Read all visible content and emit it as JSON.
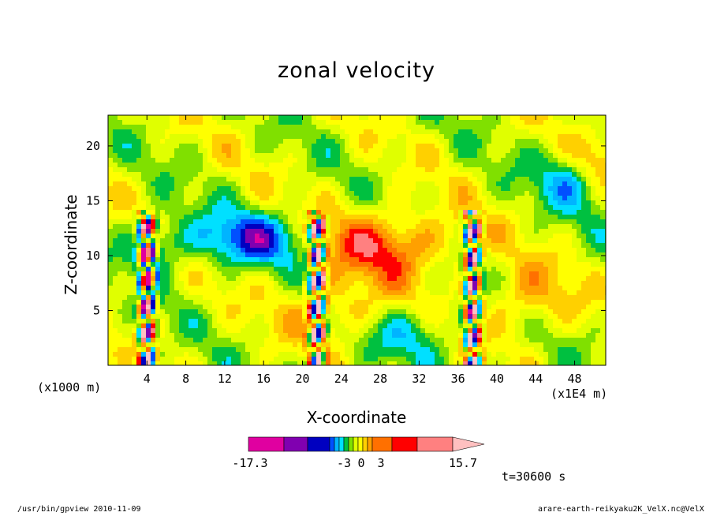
{
  "chart_data": {
    "type": "heatmap",
    "title": "zonal velocity",
    "xlabel": "X-coordinate",
    "ylabel": "Z-coordinate",
    "x_unit": "(x1000 m)",
    "x_unit2": "(x1E4 m)",
    "x_ticks": [
      "4",
      "8",
      "12",
      "16",
      "20",
      "24",
      "28",
      "32",
      "36",
      "40",
      "44",
      "48"
    ],
    "y_ticks": [
      "5",
      "10",
      "15",
      "20"
    ],
    "xlim": [
      0,
      51.2
    ],
    "ylim": [
      0,
      22.8
    ],
    "colorbar_labels": [
      "-17.3",
      "-3",
      "0",
      "3",
      "15.7"
    ],
    "time_label": "t=30600 s",
    "colors": [
      "#e000a0",
      "#8000b0",
      "#0000c0",
      "#0050ff",
      "#00b4ff",
      "#00e0ff",
      "#00c040",
      "#80e000",
      "#e0ff00",
      "#ffff00",
      "#ffd000",
      "#ffa000",
      "#ff7000",
      "#ff0000",
      "#ff8080",
      "#ffc0c0"
    ]
  },
  "footer": {
    "left": "/usr/bin/gpview  2010-11-09",
    "right": "arare-earth-reikyaku2K_VelX.nc@VelX"
  }
}
